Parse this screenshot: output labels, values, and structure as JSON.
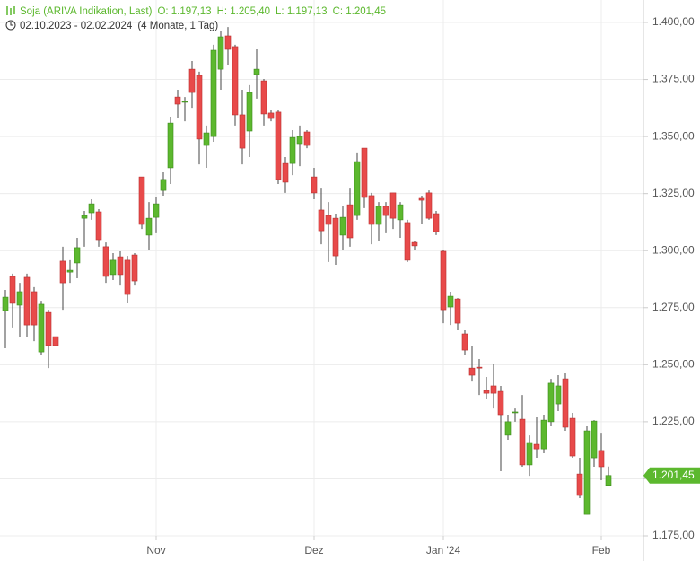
{
  "header": {
    "title": "Soja (ARIVA Indikation, Last)",
    "open": "O: 1.197,13",
    "high": "H: 1.205,40",
    "low": "L: 1.197,13",
    "close": "C: 1.201,45",
    "range": "02.10.2023 - 02.02.2024",
    "period": "(4 Monate, 1 Tag)"
  },
  "chart_data": {
    "type": "candlestick",
    "up_color": "#5cb82e",
    "down_color": "#e84a4a",
    "grid": true,
    "categories": [
      null,
      null,
      null,
      null,
      null,
      null,
      null,
      null,
      null,
      null,
      null,
      null,
      null,
      null,
      null,
      null,
      null,
      null,
      null,
      null,
      null,
      "Nov",
      null,
      null,
      null,
      null,
      null,
      null,
      null,
      null,
      null,
      null,
      null,
      null,
      null,
      null,
      null,
      null,
      null,
      null,
      null,
      null,
      null,
      "Dez",
      null,
      null,
      null,
      null,
      null,
      null,
      null,
      null,
      null,
      null,
      null,
      null,
      null,
      null,
      null,
      null,
      null,
      "Jan '24",
      null,
      null,
      null,
      null,
      null,
      null,
      null,
      null,
      null,
      null,
      null,
      null,
      null,
      null,
      null,
      null,
      null,
      null,
      null,
      null,
      null,
      "Feb",
      null
    ],
    "open": [
      1273.7,
      1288.7,
      1276.1,
      1288.3,
      1282,
      1255.6,
      1272.9,
      1262.3,
      1295.4,
      1290.6,
      1294.6,
      1314.2,
      1316.6,
      1317,
      1301.7,
      1289.5,
      1297.3,
      1295.8,
      1298.1,
      1332.3,
      1306.8,
      1314.6,
      1326.4,
      1336.3,
      1367.3,
      1365.4,
      1379.5,
      1376.8,
      1346.1,
      1350,
      1379.5,
      1394.1,
      1389.4,
      1359.5,
      1352.4,
      1377.2,
      1374.4,
      1360.3,
      1360.7,
      1338.2,
      1338.2,
      1346.9,
      1352,
      1332.3,
      1317.8,
      1315.4,
      1314.2,
      1306.8,
      1320.1,
      1315.4,
      1344.9,
      1324.1,
      1311.5,
      1319.4,
      1325.3,
      1313.5,
      1312.3,
      1303.6,
      1322.9,
      1325.3,
      1316.2,
      1299.7,
      1275.3,
      1278.8,
      1263.5,
      1248.5,
      1248.9,
      1238.7,
      1240.7,
      1238.3,
      1219.1,
      1228.9,
      1226.1,
      1206.1,
      1215.1,
      1213.1,
      1225,
      1232.8,
      1243.8,
      1226.5,
      1202.1,
      1184.4,
      1209.2,
      1212.4,
      1197.13
    ],
    "high": [
      1282.8,
      1289.9,
      1285.9,
      1289.9,
      1284,
      1278,
      1274.1,
      1262.3,
      1301.7,
      1295.8,
      1305.6,
      1317.4,
      1322.5,
      1318.2,
      1303.6,
      1298.9,
      1299.7,
      1297.7,
      1298.9,
      1332.3,
      1321.3,
      1323.3,
      1334.3,
      1358.7,
      1370.5,
      1367.3,
      1383.1,
      1378.4,
      1354.8,
      1390.2,
      1396.1,
      1398,
      1390.2,
      1370.5,
      1372.5,
      1388.2,
      1375.2,
      1361.8,
      1361.8,
      1341,
      1352.8,
      1354.8,
      1352.8,
      1336.3,
      1327.2,
      1321.3,
      1316.2,
      1319.4,
      1327.2,
      1343,
      1344.9,
      1325.3,
      1321.3,
      1321.3,
      1325.3,
      1321.3,
      1313.5,
      1304.4,
      1324.1,
      1326.4,
      1317.4,
      1300.5,
      1282,
      1279.2,
      1265.1,
      1258.4,
      1252.5,
      1244.6,
      1250.5,
      1240.7,
      1228.1,
      1230.8,
      1236.7,
      1219,
      1226.9,
      1228.1,
      1243.8,
      1245.4,
      1246.6,
      1228.9,
      1209.2,
      1223,
      1225.7,
      1220.2,
      1205.4
    ],
    "low": [
      1257.2,
      1266.3,
      1262.3,
      1262.3,
      1260.3,
      1254.4,
      1248.5,
      1258.4,
      1274.1,
      1285.9,
      1287.9,
      1301.7,
      1313.5,
      1301.7,
      1285.9,
      1287.1,
      1284.7,
      1276.9,
      1284.7,
      1309.5,
      1300.5,
      1307.6,
      1324.1,
      1329.2,
      1357.9,
      1356.7,
      1362.6,
      1337.8,
      1336.3,
      1347.7,
      1370.5,
      1381.5,
      1354.8,
      1337.8,
      1341,
      1366.6,
      1354.8,
      1356.7,
      1329.2,
      1325.3,
      1333.1,
      1337,
      1344.9,
      1322.5,
      1302.8,
      1295,
      1293.8,
      1300.5,
      1301.7,
      1313.5,
      1318.6,
      1302.8,
      1304.4,
      1307.6,
      1309.5,
      1305.6,
      1295,
      1300.5,
      1311.5,
      1313.5,
      1306.8,
      1268.2,
      1267.4,
      1265.1,
      1254.4,
      1242.6,
      1236.7,
      1234.8,
      1230.8,
      1203.3,
      1217.1,
      1225,
      1205.3,
      1201.3,
      1209.2,
      1211.2,
      1223,
      1229.7,
      1221,
      1209.2,
      1191.5,
      1184.4,
      1205.3,
      1199.4,
      1197.13
    ],
    "close": [
      1279.6,
      1276.9,
      1282,
      1267.4,
      1267.4,
      1276.5,
      1258.4,
      1258.4,
      1285.9,
      1291.4,
      1301.3,
      1315.4,
      1320.5,
      1304.8,
      1288.7,
      1295.8,
      1289.5,
      1280.8,
      1286.7,
      1311.5,
      1314.2,
      1320.5,
      1331.2,
      1355.9,
      1364.2,
      1365.4,
      1369.3,
      1348.9,
      1351.6,
      1387.8,
      1393.7,
      1388.2,
      1359.5,
      1344.9,
      1369.3,
      1379.5,
      1359.9,
      1357.9,
      1331.2,
      1330,
      1349.6,
      1350,
      1346.1,
      1325.3,
      1308.7,
      1311.5,
      1297.7,
      1314.6,
      1305.6,
      1339,
      1323.3,
      1311.5,
      1319.4,
      1315.4,
      1314.2,
      1320.1,
      1295.8,
      1302.1,
      1322.1,
      1314.2,
      1308.3,
      1274.1,
      1280,
      1268.2,
      1256.4,
      1245.4,
      1248.5,
      1237.5,
      1237.5,
      1228.1,
      1225,
      1229.3,
      1206.1,
      1215.9,
      1213.1,
      1225.7,
      1241.9,
      1240.7,
      1222.6,
      1210,
      1192.7,
      1221,
      1225.3,
      1205.3,
      1201.45
    ],
    "last_label": {
      "value": 1201.45,
      "label": "1.201,45"
    },
    "ylim": [
      1175,
      1400
    ],
    "yticks": [
      {
        "value": 1175,
        "label": "1.175,00"
      },
      {
        "value": 1200,
        "label": "1.200,00"
      },
      {
        "value": 1225,
        "label": "1.225,00"
      },
      {
        "value": 1250,
        "label": "1.250,00"
      },
      {
        "value": 1275,
        "label": "1.275,00"
      },
      {
        "value": 1300,
        "label": "1.300,00"
      },
      {
        "value": 1325,
        "label": "1.325,00"
      },
      {
        "value": 1350,
        "label": "1.350,00"
      },
      {
        "value": 1375,
        "label": "1.375,00"
      },
      {
        "value": 1400,
        "label": "1.400,00"
      }
    ]
  }
}
